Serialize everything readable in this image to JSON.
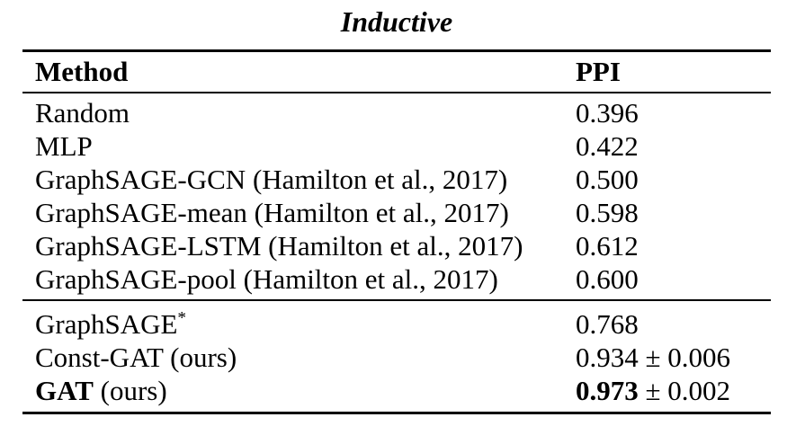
{
  "title": "Inductive",
  "table": {
    "columns": [
      {
        "key": "method",
        "label": "Method"
      },
      {
        "key": "ppi",
        "label": "PPI"
      }
    ],
    "sections": [
      {
        "name": "baselines",
        "rows": [
          {
            "method": [
              {
                "t": "Random"
              }
            ],
            "ppi": [
              {
                "t": "0.396"
              }
            ]
          },
          {
            "method": [
              {
                "t": "MLP"
              }
            ],
            "ppi": [
              {
                "t": "0.422"
              }
            ]
          },
          {
            "method": [
              {
                "t": "GraphSAGE-GCN (Hamilton et al., 2017)"
              }
            ],
            "ppi": [
              {
                "t": "0.500"
              }
            ]
          },
          {
            "method": [
              {
                "t": "GraphSAGE-mean (Hamilton et al., 2017)"
              }
            ],
            "ppi": [
              {
                "t": "0.598"
              }
            ]
          },
          {
            "method": [
              {
                "t": "GraphSAGE-LSTM (Hamilton et al., 2017)"
              }
            ],
            "ppi": [
              {
                "t": "0.612"
              }
            ]
          },
          {
            "method": [
              {
                "t": "GraphSAGE-pool (Hamilton et al., 2017)"
              }
            ],
            "ppi": [
              {
                "t": "0.600"
              }
            ]
          }
        ]
      },
      {
        "name": "ours",
        "rows": [
          {
            "method": [
              {
                "t": "GraphSAGE"
              },
              {
                "t": "*",
                "sup": true
              }
            ],
            "ppi": [
              {
                "t": "0.768"
              }
            ]
          },
          {
            "method": [
              {
                "t": "Const-GAT (ours)"
              }
            ],
            "ppi": [
              {
                "t": "0.934 ± 0.006"
              }
            ]
          },
          {
            "method": [
              {
                "t": "GAT",
                "b": true
              },
              {
                "t": " (ours)"
              }
            ],
            "ppi": [
              {
                "t": "0.973",
                "b": true
              },
              {
                "t": " ± 0.002"
              }
            ]
          }
        ]
      }
    ]
  },
  "colors": {
    "text": "#000000",
    "background": "#ffffff",
    "rule": "#000000"
  }
}
